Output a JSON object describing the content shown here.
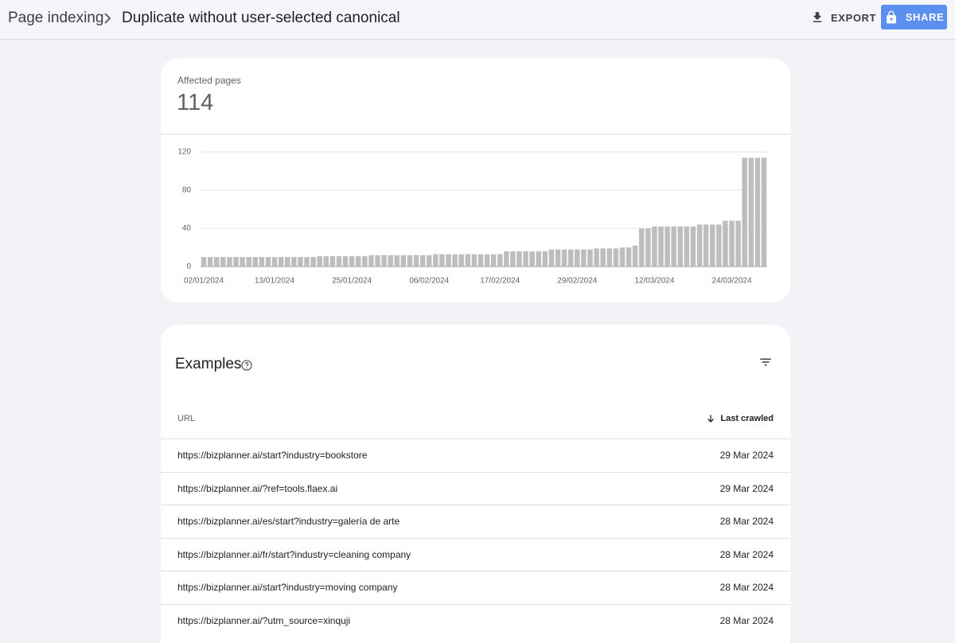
{
  "header": {
    "breadcrumb": "Page indexing",
    "title": "Duplicate without user-selected canonical",
    "export": "EXPORT",
    "share": "SHARE"
  },
  "summary": {
    "label": "Affected pages",
    "value": 114
  },
  "chart_data": {
    "type": "bar",
    "categories": [
      "02/01/2024",
      null,
      null,
      null,
      null,
      null,
      null,
      null,
      null,
      null,
      null,
      "13/01/2024",
      null,
      null,
      null,
      null,
      null,
      null,
      null,
      null,
      null,
      null,
      null,
      "25/01/2024",
      null,
      null,
      null,
      null,
      null,
      null,
      null,
      null,
      null,
      null,
      null,
      "06/02/2024",
      null,
      null,
      null,
      null,
      null,
      null,
      null,
      null,
      null,
      null,
      "17/02/2024",
      null,
      null,
      null,
      null,
      null,
      null,
      null,
      null,
      null,
      null,
      null,
      "29/02/2024",
      null,
      null,
      null,
      null,
      null,
      null,
      null,
      null,
      null,
      null,
      null,
      "12/03/2024",
      null,
      null,
      null,
      null,
      null,
      null,
      null,
      null,
      null,
      null,
      null,
      "24/03/2024",
      null,
      null,
      null,
      null,
      null
    ],
    "values": [
      10,
      10,
      10,
      10,
      10,
      10,
      10,
      10,
      10,
      10,
      10,
      10,
      10,
      10,
      10,
      10,
      10,
      10,
      11,
      11,
      11,
      11,
      11,
      11,
      11,
      11,
      12,
      12,
      12,
      12,
      12,
      12,
      12,
      12,
      12,
      12,
      13,
      13,
      13,
      13,
      13,
      13,
      13,
      13,
      13,
      13,
      13,
      16,
      16,
      16,
      16,
      16,
      16,
      16,
      18,
      18,
      18,
      18,
      18,
      18,
      18,
      19,
      19,
      19,
      19,
      20,
      20,
      22,
      40,
      40,
      42,
      42,
      42,
      42,
      42,
      42,
      42,
      44,
      44,
      44,
      44,
      48,
      48,
      48,
      114,
      114,
      114,
      114
    ],
    "color": "#bdbdbd",
    "ylim": [
      0,
      120
    ],
    "yticks": [
      0,
      40,
      80,
      120
    ],
    "grid": true
  },
  "examples": {
    "title": "Examples",
    "columns": [
      "URL",
      "Last crawled"
    ],
    "rows": [
      [
        "https://bizplanner.ai/start?industry=bookstore",
        "29 Mar 2024"
      ],
      [
        "https://bizplanner.ai/?ref=tools.flaex.ai",
        "29 Mar 2024"
      ],
      [
        "https://bizplanner.ai/es/start?industry=galería de arte",
        "28 Mar 2024"
      ],
      [
        "https://bizplanner.ai/fr/start?industry=cleaning company",
        "28 Mar 2024"
      ],
      [
        "https://bizplanner.ai/start?industry=moving company",
        "28 Mar 2024"
      ],
      [
        "https://bizplanner.ai/?utm_source=xinquji",
        "28 Mar 2024"
      ]
    ]
  }
}
